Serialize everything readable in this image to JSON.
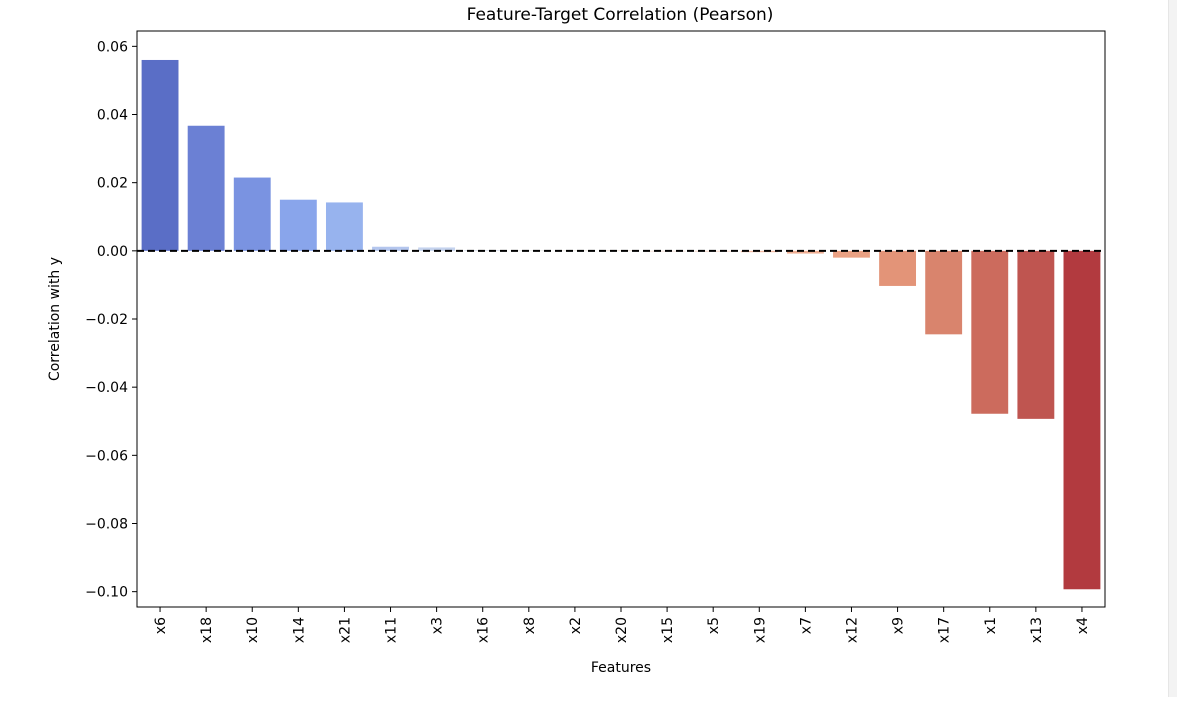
{
  "chart_data": {
    "type": "bar",
    "title": "Feature-Target Correlation (Pearson)",
    "xlabel": "Features",
    "ylabel": "Correlation with y",
    "categories": [
      "x6",
      "x18",
      "x10",
      "x14",
      "x21",
      "x11",
      "x3",
      "x16",
      "x8",
      "x2",
      "x20",
      "x15",
      "x5",
      "x19",
      "x7",
      "x12",
      "x9",
      "x17",
      "x1",
      "x13",
      "x4"
    ],
    "values": [
      0.056,
      0.0367,
      0.0215,
      0.015,
      0.0142,
      0.0012,
      0.001,
      0.0002,
      0.0001,
      0.0001,
      0.0001,
      -0.0001,
      -0.0002,
      -0.0004,
      -0.0008,
      -0.002,
      -0.0103,
      -0.0245,
      -0.0478,
      -0.0493,
      -0.0993
    ],
    "colors": [
      "#5a6ec6",
      "#6b80d4",
      "#7a93e1",
      "#89a5eb",
      "#97b3ee",
      "#b4c6ee",
      "#c5d3ee",
      "#d4dae8",
      "#dedede",
      "#e4dcd6",
      "#e9d6cb",
      "#eecfc0",
      "#f1c5b1",
      "#f2b9a1",
      "#efae93",
      "#eaa183",
      "#e39478",
      "#d9846d",
      "#cc6b5d",
      "#bf5550",
      "#b23a3f"
    ],
    "ylim": [
      -0.1045,
      0.0645
    ],
    "yticks": [
      0.06,
      0.04,
      0.02,
      0.0,
      -0.02,
      -0.04,
      -0.06,
      -0.08,
      -0.1
    ],
    "ytick_labels": [
      "0.06",
      "0.04",
      "0.02",
      "0.00",
      "−0.02",
      "−0.04",
      "−0.06",
      "−0.08",
      "−0.10"
    ],
    "reference_line": {
      "y": 0,
      "style": "dashed",
      "color": "#000000"
    },
    "grid": false,
    "legend": "none"
  }
}
